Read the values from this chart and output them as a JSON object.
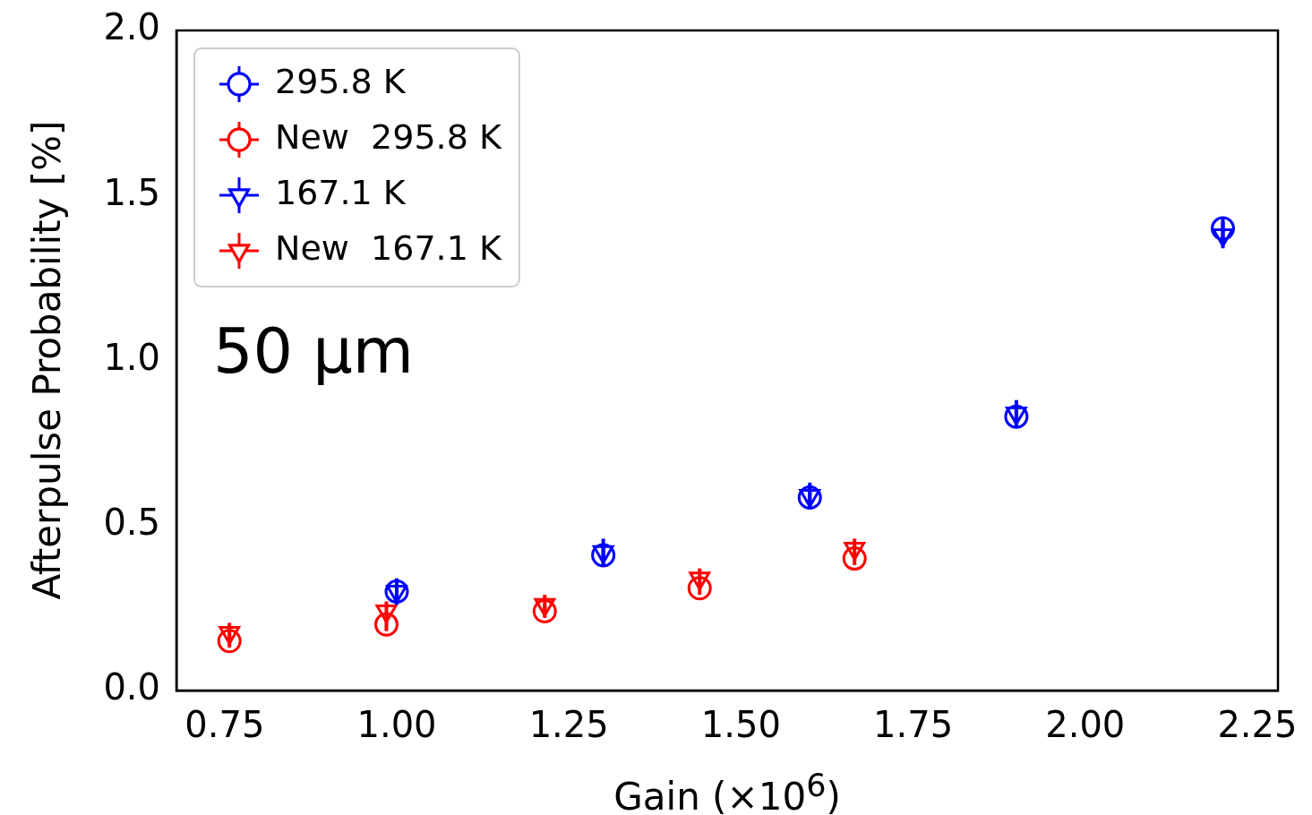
{
  "chart_data": {
    "type": "scatter",
    "xlabel": "Gain (×10$^{6}$)",
    "ylabel": "Afterpulse Probability [%]",
    "xlim": [
      0.68,
      2.28
    ],
    "xticks": [
      {
        "value": 0.75,
        "label": "0.75"
      },
      {
        "value": 1.0,
        "label": "1.00"
      },
      {
        "value": 1.25,
        "label": "1.25"
      },
      {
        "value": 1.5,
        "label": "1.50"
      },
      {
        "value": 1.75,
        "label": "1.75"
      },
      {
        "value": 2.0,
        "label": "2.00"
      },
      {
        "value": 2.25,
        "label": "2.25"
      }
    ],
    "ylim": [
      0,
      2.0
    ],
    "yticks": [
      {
        "value": 0,
        "label": "0.0"
      },
      {
        "value": 0.5,
        "label": "0.5"
      },
      {
        "value": 1.0,
        "label": "1.0"
      },
      {
        "value": 1.5,
        "label": "1.5"
      },
      {
        "value": 2.0,
        "label": "2.0"
      }
    ],
    "legend": "top left",
    "grid": false,
    "annotations": [
      "50 μm"
    ],
    "series": [
      {
        "name": "295.8 K",
        "color": "#0000ff",
        "marker": "circle",
        "x": [
          1.0,
          1.3,
          1.6,
          1.9,
          2.2
        ],
        "values": [
          0.3,
          0.41,
          0.585,
          0.83,
          1.4
        ],
        "errors": [
          0.03,
          0.03,
          0.03,
          0.03,
          0.03
        ]
      },
      {
        "name": "New  295.8 K",
        "color": "#ff0000",
        "marker": "circle",
        "x": [
          0.757,
          0.985,
          1.215,
          1.44,
          1.665
        ],
        "values": [
          0.15,
          0.2,
          0.24,
          0.31,
          0.4
        ],
        "errors": [
          0.02,
          0.02,
          0.02,
          0.02,
          0.02
        ]
      },
      {
        "name": "167.1 K",
        "color": "#0000ff",
        "marker": "triangle",
        "x": [
          1.0,
          1.3,
          1.6,
          1.9,
          2.2
        ],
        "values": [
          0.3,
          0.42,
          0.59,
          0.84,
          1.38
        ],
        "errors": [
          0.04,
          0.04,
          0.04,
          0.04,
          0.04
        ]
      },
      {
        "name": "New  167.1 K",
        "color": "#ff0000",
        "marker": "triangle",
        "x": [
          0.757,
          0.985,
          1.215,
          1.44,
          1.665
        ],
        "values": [
          0.175,
          0.24,
          0.26,
          0.34,
          0.43
        ],
        "errors": [
          0.03,
          0.03,
          0.03,
          0.03,
          0.03
        ]
      }
    ]
  }
}
